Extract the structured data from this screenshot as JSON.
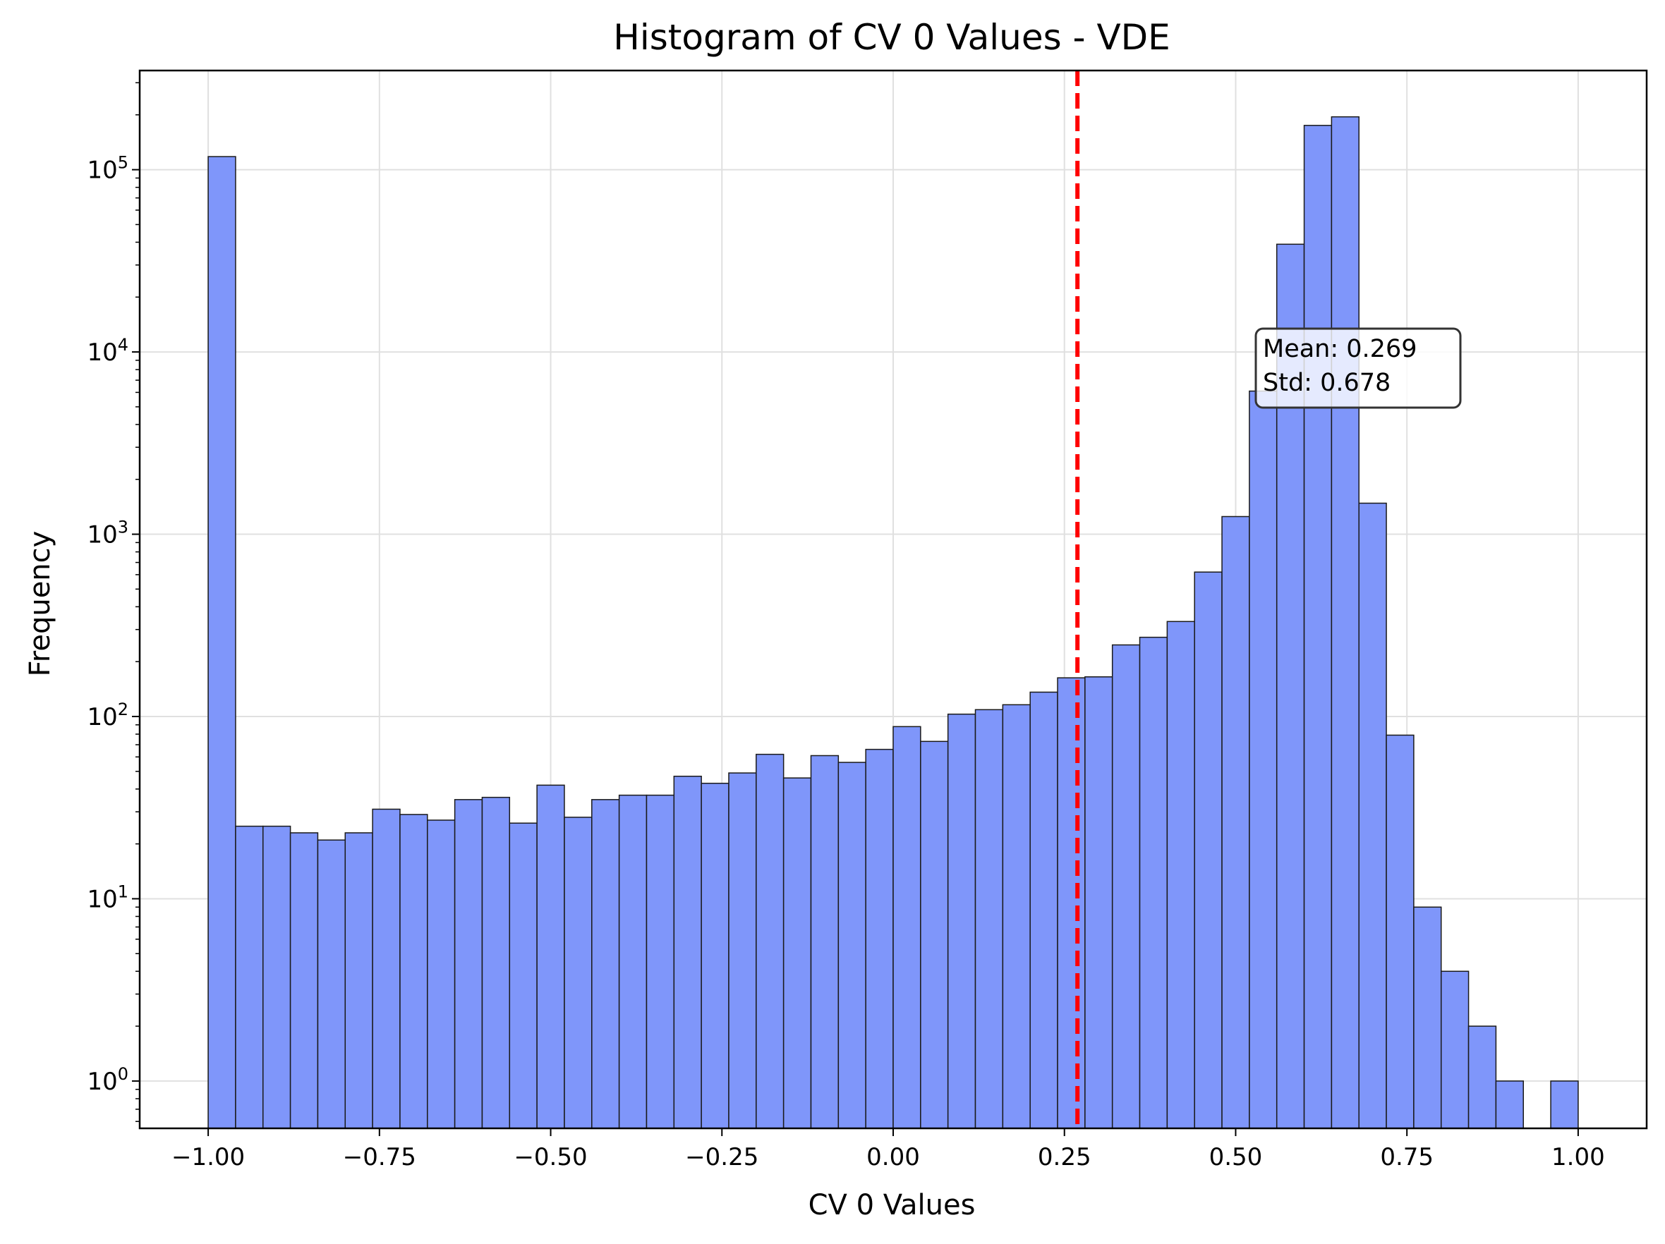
{
  "chart_data": {
    "type": "bar",
    "title": "Histogram of CV 0 Values - VDE",
    "xlabel": "CV 0 Values",
    "ylabel": "Frequency",
    "y_scale": "log",
    "xlim": [
      -1.1,
      1.1
    ],
    "ylim": [
      0.55,
      350000
    ],
    "grid": true,
    "bar_color": "#7f96fa",
    "bar_edge_color": "#1a1a1a",
    "bin_edges": [
      -1.0,
      -0.96,
      -0.92,
      -0.88,
      -0.84,
      -0.8,
      -0.76,
      -0.72,
      -0.68,
      -0.64,
      -0.6,
      -0.56,
      -0.52,
      -0.48,
      -0.44,
      -0.4,
      -0.36,
      -0.32,
      -0.28,
      -0.24,
      -0.2,
      -0.16,
      -0.12,
      -0.08,
      -0.04,
      0.0,
      0.04,
      0.08,
      0.12,
      0.16,
      0.2,
      0.24,
      0.28,
      0.32,
      0.36,
      0.4,
      0.44,
      0.48,
      0.52,
      0.56,
      0.6,
      0.64,
      0.68,
      0.72,
      0.76,
      0.8,
      0.84,
      0.88,
      0.92,
      0.96,
      1.0
    ],
    "values": [
      118000,
      25,
      25,
      23,
      21,
      23,
      31,
      29,
      27,
      35,
      36,
      26,
      42,
      28,
      35,
      37,
      37,
      47,
      43,
      49,
      62,
      46,
      61,
      56,
      66,
      88,
      73,
      103,
      109,
      116,
      136,
      163,
      165,
      247,
      272,
      332,
      620,
      1250,
      6100,
      39000,
      175000,
      195000,
      1480,
      79,
      9,
      4,
      2,
      1,
      0,
      1
    ],
    "x_ticks": [
      -1.0,
      -0.75,
      -0.5,
      -0.25,
      0.0,
      0.25,
      0.5,
      0.75,
      1.0
    ],
    "x_tick_labels": [
      "−1.00",
      "−0.75",
      "−0.50",
      "−0.25",
      "0.00",
      "0.25",
      "0.50",
      "0.75",
      "1.00"
    ],
    "y_ticks": [
      1,
      10,
      100,
      1000,
      10000,
      100000
    ],
    "y_tick_labels": [
      {
        "base": "10",
        "exp": "0"
      },
      {
        "base": "10",
        "exp": "1"
      },
      {
        "base": "10",
        "exp": "2"
      },
      {
        "base": "10",
        "exp": "3"
      },
      {
        "base": "10",
        "exp": "4"
      },
      {
        "base": "10",
        "exp": "5"
      }
    ],
    "mean_line": {
      "x": 0.269,
      "color": "#ff0000",
      "style": "dashed"
    },
    "stats_box": {
      "mean_text": "Mean: 0.269",
      "std_text": "Std: 0.678",
      "placement": "upper-right"
    }
  }
}
